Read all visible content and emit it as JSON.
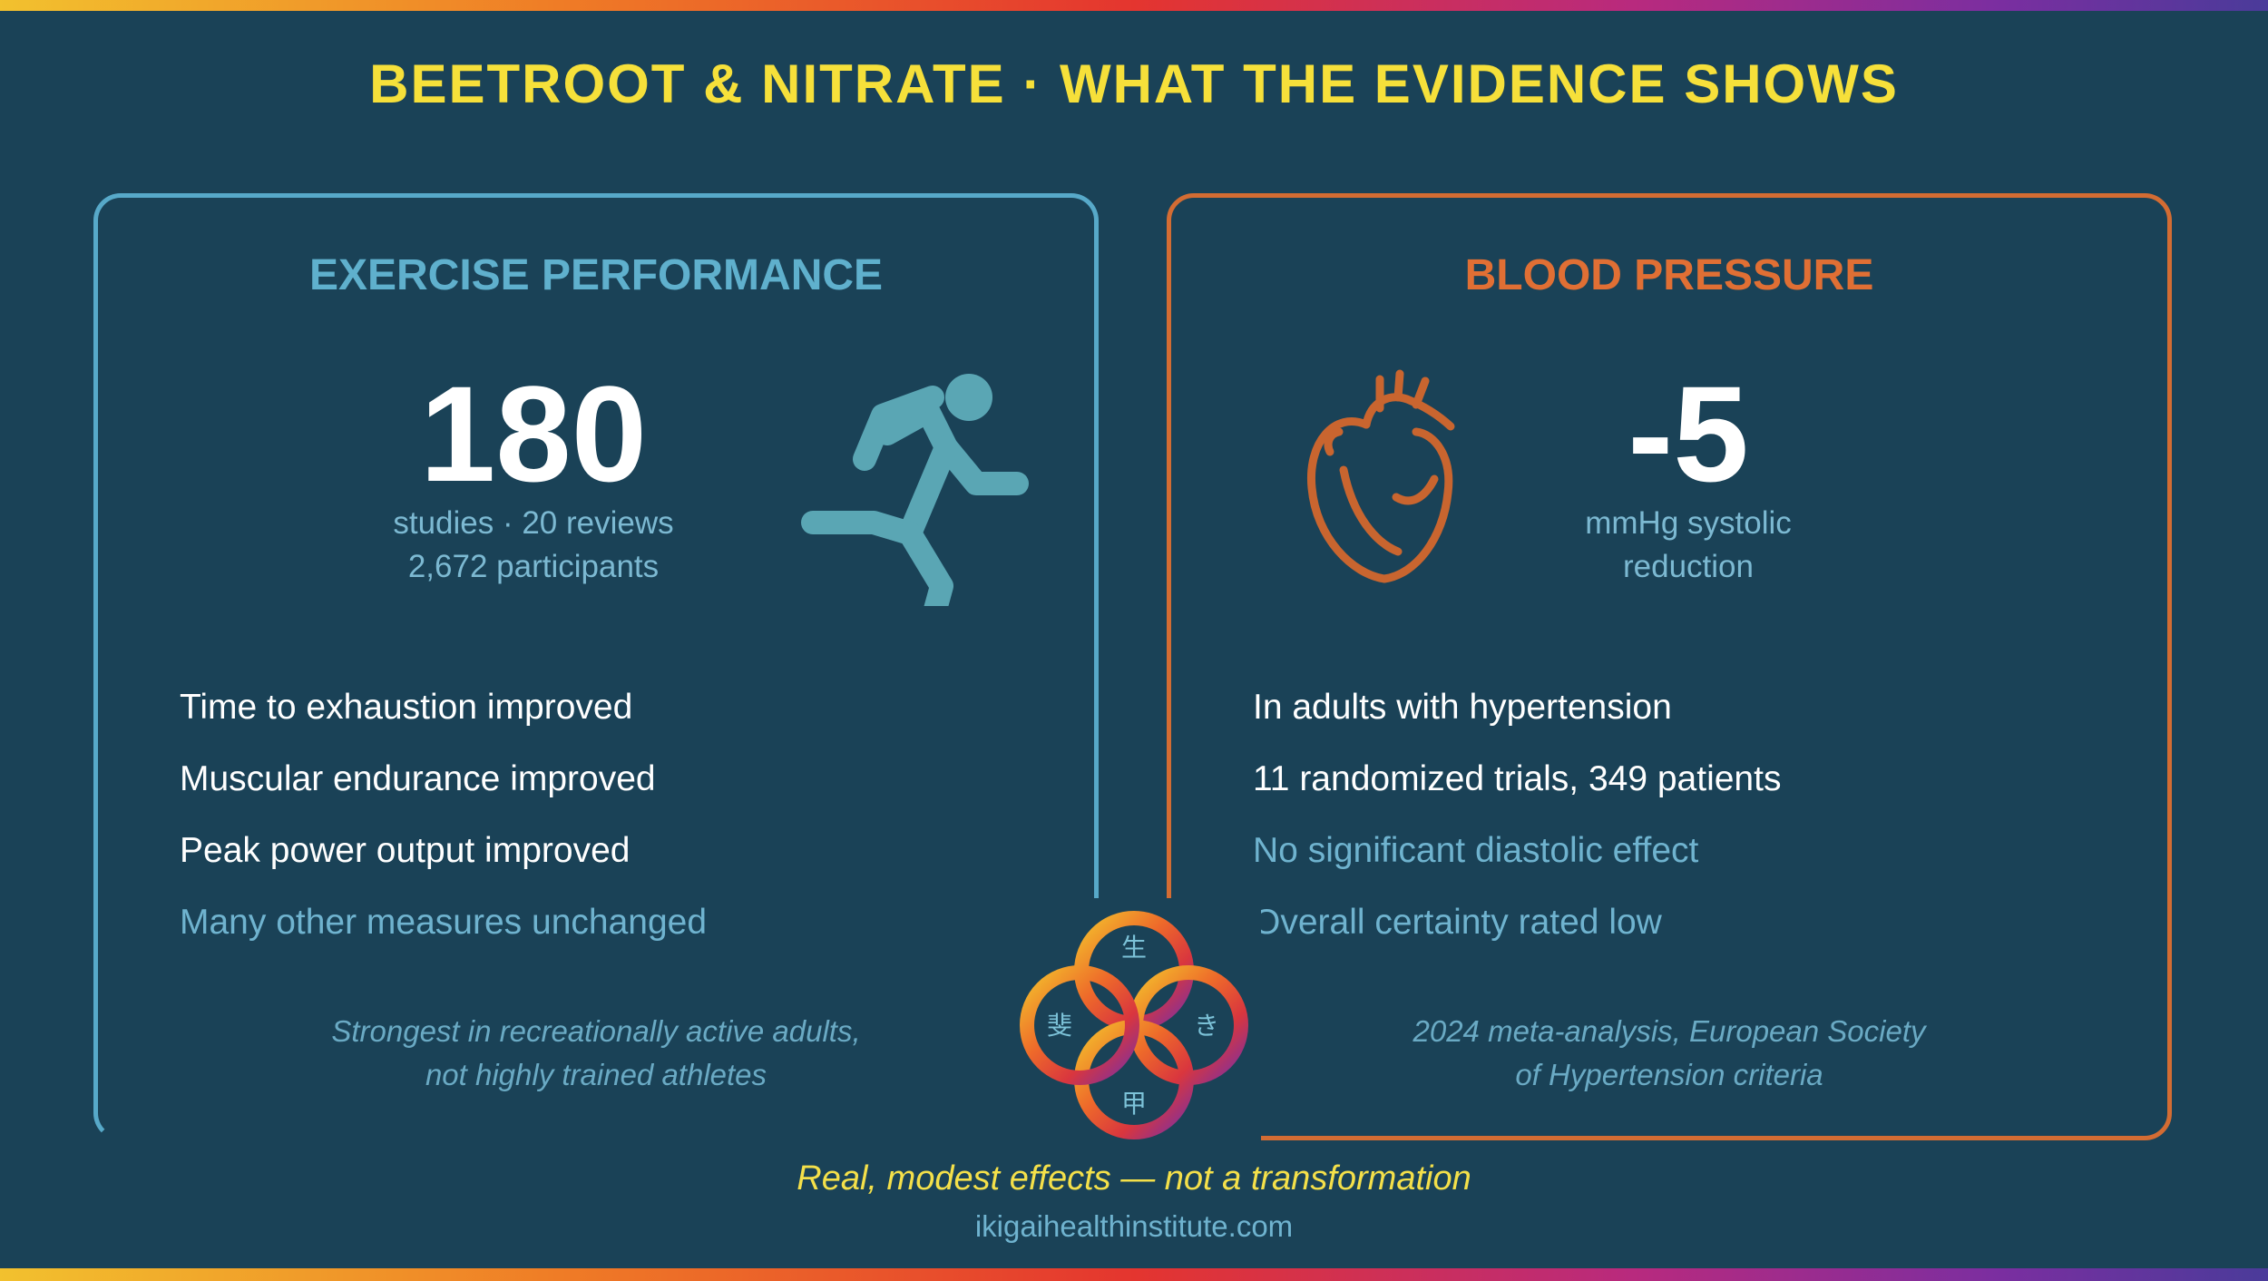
{
  "title": "BEETROOT & NITRATE · WHAT THE EVIDENCE SHOWS",
  "colors": {
    "background": "#1a4257",
    "title": "#f6e03a",
    "exercise_accent": "#57a9c9",
    "bp_accent": "#d36c33"
  },
  "exercise": {
    "heading": "EXERCISE PERFORMANCE",
    "stat": "180",
    "stat_line1": "studies · 20 reviews",
    "stat_line2": "2,672 participants",
    "icon": "running-person-icon",
    "items": [
      "Time to exhaustion improved",
      "Muscular endurance improved",
      "Peak power output improved",
      "Many other measures unchanged"
    ],
    "note_line1": "Strongest in recreationally active adults,",
    "note_line2": "not highly trained athletes"
  },
  "blood_pressure": {
    "heading": "BLOOD PRESSURE",
    "stat": "-5",
    "stat_line1": "mmHg systolic",
    "stat_line2": "reduction",
    "icon": "heart-icon",
    "items": [
      "In adults with hypertension",
      "11 randomized trials, 349 patients",
      "No significant diastolic effect",
      "Overall certainty rated low"
    ],
    "note_line1": "2024 meta-analysis, European Society",
    "note_line2": "of Hypertension criteria"
  },
  "logo": {
    "icon": "ikigai-rings-logo",
    "glyphs": [
      "生",
      "き",
      "甲",
      "斐"
    ]
  },
  "tagline": "Real, modest effects — not a transformation",
  "website": "ikigaihealthinstitute.com"
}
